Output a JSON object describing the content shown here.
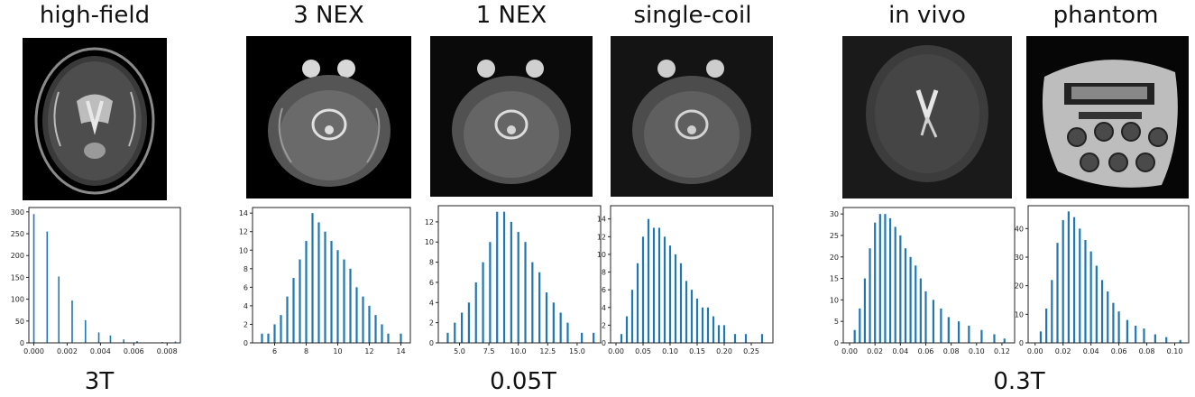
{
  "titles": [
    "high-field",
    "3 NEX",
    "1 NEX",
    "single-coil",
    "in vivo",
    "phantom"
  ],
  "groups": [
    "3T",
    "0.05T",
    "0.3T"
  ],
  "colors": {
    "bar": "#1f77b4",
    "axes": "#222222",
    "image_bg": "#000000",
    "tissue": "#8a8a8a"
  },
  "chart_data": [
    {
      "type": "bar",
      "title": "high-field",
      "xlim": [
        -0.0003,
        0.0088
      ],
      "ylim": [
        0,
        310
      ],
      "xticks": [
        0,
        0.002,
        0.004,
        0.006,
        0.008
      ],
      "xtick_labels": [
        "0.000",
        "0.002",
        "0.004",
        "0.006",
        "0.008"
      ],
      "yticks": [
        0,
        50,
        100,
        150,
        200,
        250,
        300
      ],
      "ytick_labels": [
        "0",
        "50",
        "100",
        "150",
        "200",
        "250",
        "300"
      ],
      "x": [
        0.0,
        0.0008,
        0.0015,
        0.0023,
        0.0031,
        0.0039,
        0.0046,
        0.0054,
        0.0062,
        0.0077,
        0.0085
      ],
      "values": [
        295,
        255,
        152,
        97,
        52,
        24,
        17,
        8,
        4,
        2,
        3
      ]
    },
    {
      "type": "bar",
      "title": "3 NEX",
      "xlim": [
        4.6,
        14.6
      ],
      "ylim": [
        0,
        14.6
      ],
      "xticks": [
        6,
        8,
        10,
        12,
        14
      ],
      "xtick_labels": [
        "6",
        "8",
        "10",
        "12",
        "14"
      ],
      "yticks": [
        0,
        2,
        4,
        6,
        8,
        10,
        12,
        14
      ],
      "ytick_labels": [
        "0",
        "2",
        "4",
        "6",
        "8",
        "10",
        "12",
        "14"
      ],
      "x": [
        5.2,
        5.6,
        6.0,
        6.4,
        6.8,
        7.2,
        7.6,
        8.0,
        8.4,
        8.8,
        9.2,
        9.6,
        10.0,
        10.4,
        10.8,
        11.2,
        11.6,
        12.0,
        12.4,
        12.8,
        13.2,
        14.0
      ],
      "values": [
        1,
        1,
        2,
        3,
        5,
        7,
        9,
        11,
        14,
        13,
        12,
        11,
        10,
        9,
        8,
        6,
        5,
        4,
        3,
        2,
        1,
        1
      ]
    },
    {
      "type": "bar",
      "title": "1 NEX",
      "xlim": [
        3.2,
        17.0
      ],
      "ylim": [
        0,
        13.6
      ],
      "xticks": [
        5,
        7.5,
        10,
        12.5,
        15
      ],
      "xtick_labels": [
        "5.0",
        "7.5",
        "10.0",
        "12.5",
        "15.0"
      ],
      "yticks": [
        0,
        2,
        4,
        6,
        8,
        10,
        12
      ],
      "ytick_labels": [
        "0",
        "2",
        "4",
        "6",
        "8",
        "10",
        "12"
      ],
      "x": [
        4.0,
        4.6,
        5.2,
        5.8,
        6.4,
        7.0,
        7.6,
        8.2,
        8.8,
        9.4,
        10.0,
        10.6,
        11.2,
        11.8,
        12.4,
        13.0,
        13.6,
        14.2,
        15.4,
        16.4
      ],
      "values": [
        1,
        2,
        3,
        4,
        6,
        8,
        10,
        13,
        13,
        12,
        11,
        10,
        8,
        7,
        5,
        4,
        3,
        2,
        1,
        1
      ]
    },
    {
      "type": "bar",
      "title": "single-coil",
      "xlim": [
        -0.01,
        0.29
      ],
      "ylim": [
        0,
        15.5
      ],
      "xticks": [
        0,
        0.05,
        0.1,
        0.15,
        0.2,
        0.25
      ],
      "xtick_labels": [
        "0.00",
        "0.05",
        "0.10",
        "0.15",
        "0.20",
        "0.25"
      ],
      "yticks": [
        0,
        2,
        4,
        6,
        8,
        10,
        12,
        14
      ],
      "ytick_labels": [
        "0",
        "2",
        "4",
        "6",
        "8",
        "10",
        "12",
        "14"
      ],
      "x": [
        0.01,
        0.02,
        0.03,
        0.04,
        0.05,
        0.06,
        0.07,
        0.08,
        0.09,
        0.1,
        0.11,
        0.12,
        0.13,
        0.14,
        0.15,
        0.16,
        0.17,
        0.18,
        0.19,
        0.2,
        0.22,
        0.24,
        0.27
      ],
      "values": [
        1,
        3,
        6,
        9,
        12,
        14,
        13,
        13,
        12,
        11,
        10,
        9,
        7,
        6,
        5,
        4,
        4,
        3,
        2,
        2,
        1,
        1,
        1
      ]
    },
    {
      "type": "bar",
      "title": "in vivo",
      "xlim": [
        -0.005,
        0.13
      ],
      "ylim": [
        0,
        31.5
      ],
      "xticks": [
        0,
        0.02,
        0.04,
        0.06,
        0.08,
        0.1,
        0.12
      ],
      "xtick_labels": [
        "0.00",
        "0.02",
        "0.04",
        "0.06",
        "0.08",
        "0.10",
        "0.12"
      ],
      "yticks": [
        0,
        5,
        10,
        15,
        20,
        25,
        30
      ],
      "ytick_labels": [
        "0",
        "5",
        "10",
        "15",
        "20",
        "25",
        "30"
      ],
      "x": [
        0.004,
        0.008,
        0.012,
        0.016,
        0.02,
        0.024,
        0.028,
        0.032,
        0.036,
        0.04,
        0.044,
        0.048,
        0.052,
        0.056,
        0.06,
        0.066,
        0.072,
        0.078,
        0.086,
        0.094,
        0.104,
        0.114,
        0.122
      ],
      "values": [
        3,
        8,
        15,
        22,
        28,
        30,
        30,
        29,
        27,
        25,
        22,
        20,
        18,
        15,
        12,
        10,
        8,
        6,
        5,
        4,
        3,
        2,
        1
      ]
    },
    {
      "type": "bar",
      "title": "phantom",
      "xlim": [
        -0.005,
        0.11
      ],
      "ylim": [
        0,
        48
      ],
      "xticks": [
        0,
        0.02,
        0.04,
        0.06,
        0.08,
        0.1
      ],
      "xtick_labels": [
        "0.00",
        "0.02",
        "0.04",
        "0.06",
        "0.08",
        "0.10"
      ],
      "yticks": [
        0,
        10,
        20,
        30,
        40
      ],
      "ytick_labels": [
        "0",
        "10",
        "20",
        "30",
        "40"
      ],
      "x": [
        0.004,
        0.008,
        0.012,
        0.016,
        0.02,
        0.024,
        0.028,
        0.032,
        0.036,
        0.04,
        0.044,
        0.048,
        0.052,
        0.056,
        0.06,
        0.066,
        0.072,
        0.078,
        0.086,
        0.094,
        0.104
      ],
      "values": [
        4,
        12,
        22,
        35,
        43,
        46,
        44,
        40,
        36,
        32,
        27,
        22,
        18,
        14,
        11,
        8,
        6,
        5,
        3,
        2,
        1
      ]
    }
  ]
}
